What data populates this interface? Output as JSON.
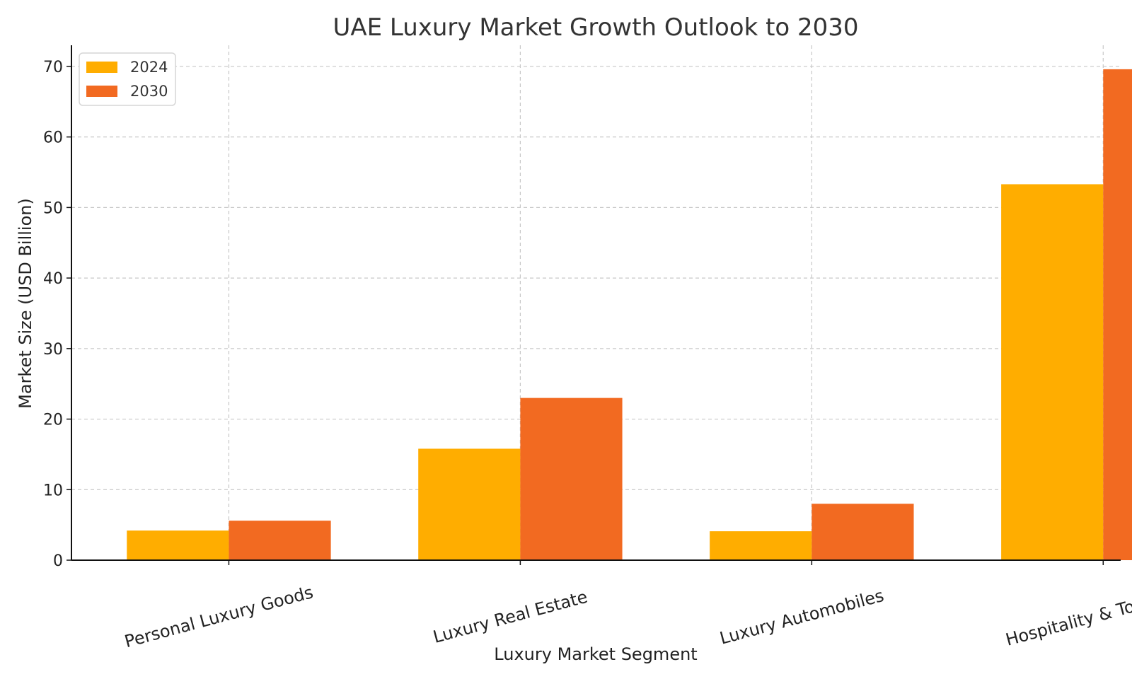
{
  "chart_data": {
    "type": "bar",
    "title": "UAE Luxury Market Growth Outlook to 2030",
    "xlabel": "Luxury Market Segment",
    "ylabel": "Market Size (USD Billion)",
    "categories": [
      "Personal Luxury Goods",
      "Luxury Real Estate",
      "Luxury Automobiles",
      "Hospitality & Tourism"
    ],
    "series": [
      {
        "name": "2024",
        "values": [
          4.2,
          15.8,
          4.1,
          53.3
        ],
        "color": "#FFAD00"
      },
      {
        "name": "2030",
        "values": [
          5.6,
          23.0,
          8.0,
          69.6
        ],
        "color": "#F26A21"
      }
    ],
    "ylim": [
      0,
      73
    ],
    "yticks": [
      0,
      10,
      20,
      30,
      40,
      50,
      60,
      70
    ],
    "grid": true,
    "legend_position": "top-left"
  }
}
